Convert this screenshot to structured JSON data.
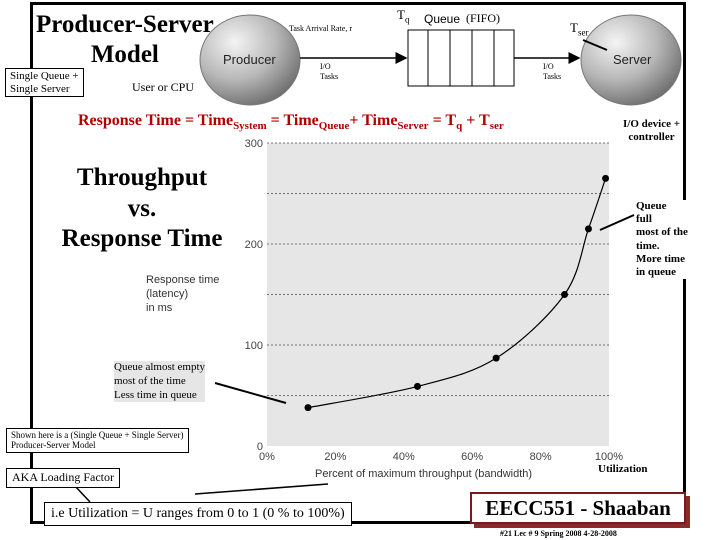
{
  "title_line1": "Producer-Server",
  "title_line2": "Model",
  "single_queue_line1": "Single Queue +",
  "single_queue_line2": "Single Server",
  "user_cpu": "User or CPU",
  "task_arrival": "Task Arrival Rate, r",
  "tq_main": "T",
  "tq_sub": "q",
  "queue_label": "Queue",
  "fifo": "(FIFO)",
  "tser_main": "T",
  "tser_sub": "ser",
  "producer": "Producer",
  "server": "Server",
  "io_left_1": "I/O",
  "io_left_2": "Tasks",
  "io_right_1": "I/O",
  "io_right_2": "Tasks",
  "io_device_1": "I/O device +",
  "io_device_2": "controller",
  "response_eq": {
    "p1": "Response Time  =  Time",
    "s1": "System",
    "p2": " = Time",
    "s2": "Queue",
    "p3": "+  Time",
    "s3": "Server",
    "p4": " =  T",
    "s4": "q",
    "p5": " + T",
    "s5": "ser"
  },
  "big_title_1": "Throughput",
  "big_title_2": "vs.",
  "big_title_3": "Response Time",
  "queue_full": [
    "Queue",
    "full",
    "most of the",
    "time.",
    "More time",
    "in queue"
  ],
  "queue_empty": [
    "Queue almost empty",
    "most of the time",
    "Less time in queue"
  ],
  "shown_here_1": "Shown here is a (Single Queue + Single Server)",
  "shown_here_2": "Producer-Server Model",
  "aka": "AKA Loading Factor",
  "utilization_label": "Utilization",
  "utilization_range": "i.e Utilization = U  ranges from 0 to 1  (0 % to 100%)",
  "eecc": "EECC551 - Shaaban",
  "footer": "#21   Lec # 9   Spring 2008  4-28-2008",
  "chart_data": {
    "type": "line",
    "ylabel_lines": [
      "Response time",
      "(latency)",
      "in ms"
    ],
    "xlabel": "Percent of maximum throughput (bandwidth)",
    "x_ticks": [
      "0%",
      "20%",
      "40%",
      "60%",
      "80%",
      "100%"
    ],
    "y_ticks": [
      "0",
      "100",
      "200",
      "300"
    ],
    "xlim": [
      0,
      100
    ],
    "ylim": [
      0,
      300
    ],
    "points": [
      {
        "x": 12,
        "y": 38
      },
      {
        "x": 44,
        "y": 59
      },
      {
        "x": 67,
        "y": 87
      },
      {
        "x": 87,
        "y": 150
      },
      {
        "x": 94,
        "y": 215
      },
      {
        "x": 99,
        "y": 265
      }
    ],
    "grid": "horizontal-dashed",
    "plot_bg": "#e6e6e6"
  }
}
